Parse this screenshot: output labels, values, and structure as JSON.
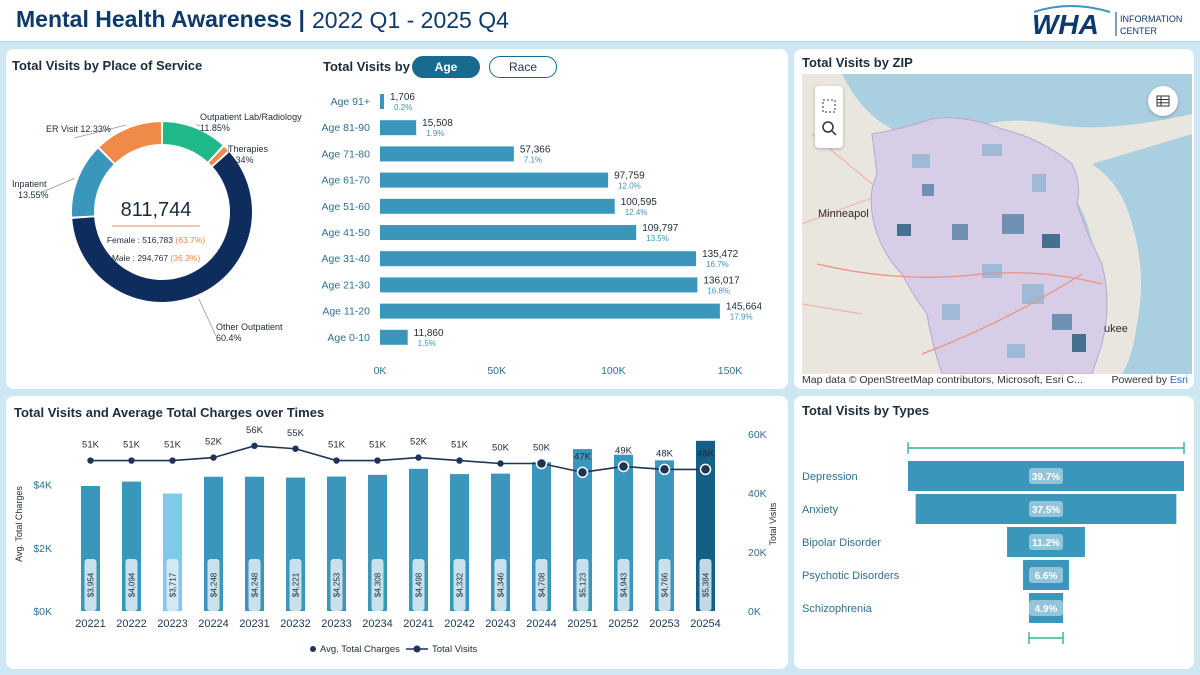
{
  "header": {
    "title": "Mental Health Awareness |",
    "range": "2022 Q1 - 2025 Q4",
    "logo_text": "WHA",
    "logo_sub1": "INFORMATION",
    "logo_sub2": "CENTER"
  },
  "place_panel": {
    "title": "Total Visits by Place of Service",
    "total": "811,744",
    "female_label": "Female : 516,783",
    "female_pct": "(63.7%)",
    "male_label": "Male : 294,767",
    "male_pct": "(36.3%)"
  },
  "place_chart": {
    "type": "pie",
    "slices": [
      {
        "name": "Outpatient Lab/Radiology",
        "pct_label": "11.85%",
        "value": 11.85,
        "color": "#1fb889"
      },
      {
        "name": "Therapies",
        "pct_label": "1.34%",
        "value": 1.34,
        "color": "#f08a48"
      },
      {
        "name": "Other Outpatient",
        "pct_label": "60.4%",
        "value": 60.4,
        "color": "#0e2d5c"
      },
      {
        "name": "Inpatient",
        "pct_label": "13.55%",
        "value": 13.55,
        "color": "#3a96ba"
      },
      {
        "name": "ER Visit",
        "pct_label": "12.33%",
        "value": 12.33,
        "color": "#f08a48"
      }
    ]
  },
  "age_panel": {
    "title": "Total Visits by",
    "tab_age": "Age",
    "tab_race": "Race"
  },
  "age_chart": {
    "type": "bar",
    "categories": [
      "Age 91+",
      "Age 81-90",
      "Age 71-80",
      "Age 61-70",
      "Age 51-60",
      "Age 41-50",
      "Age 31-40",
      "Age 21-30",
      "Age 11-20",
      "Age 0-10"
    ],
    "values": [
      1706,
      15508,
      57366,
      97759,
      100595,
      109797,
      135472,
      136017,
      145664,
      11860
    ],
    "value_labels": [
      "1,706",
      "15,508",
      "57,366",
      "97,759",
      "100,595",
      "109,797",
      "135,472",
      "136,017",
      "145,664",
      "11,860"
    ],
    "pct_labels": [
      "0.2%",
      "1.9%",
      "7.1%",
      "12.0%",
      "12.4%",
      "13.5%",
      "16.7%",
      "16.8%",
      "17.9%",
      "1.5%"
    ],
    "xticks": [
      "0K",
      "50K",
      "100K",
      "150K"
    ],
    "xlim": [
      0,
      150000
    ],
    "color": "#3a96ba"
  },
  "zip_panel": {
    "title": "Total Visits by ZIP",
    "city1": "Minneapol",
    "city2": "ukee",
    "attribution": "Map data © OpenStreetMap contributors, Microsoft, Esri C...",
    "powered": "Powered by",
    "powered_brand": "Esri",
    "icons": [
      "select-rect-icon",
      "search-icon",
      "table-icon"
    ]
  },
  "time_panel": {
    "title": "Total Visits and Average Total Charges over Times"
  },
  "time_chart": {
    "type": "bar",
    "categories": [
      "20221",
      "20222",
      "20223",
      "20224",
      "20231",
      "20232",
      "20233",
      "20234",
      "20241",
      "20242",
      "20243",
      "20244",
      "20251",
      "20252",
      "20253",
      "20254"
    ],
    "charges": [
      3954,
      4094,
      3717,
      4248,
      4248,
      4221,
      4253,
      4308,
      4498,
      4332,
      4346,
      4708,
      5123,
      4943,
      4766,
      5384
    ],
    "charge_labels": [
      "$3,954",
      "$4,094",
      "$3,717",
      "$4,248",
      "$4,248",
      "$4,221",
      "$4,253",
      "$4,308",
      "$4,498",
      "$4,332",
      "$4,346",
      "$4,708",
      "$5,123",
      "$4,943",
      "$4,766",
      "$5,384"
    ],
    "visits": [
      51000,
      51000,
      51000,
      52000,
      56000,
      55000,
      51000,
      51000,
      52000,
      51000,
      50000,
      50000,
      47000,
      49000,
      48000,
      48000
    ],
    "visit_labels": [
      "51K",
      "51K",
      "51K",
      "52K",
      "56K",
      "55K",
      "51K",
      "51K",
      "52K",
      "51K",
      "50K",
      "50K",
      "47K",
      "49K",
      "48K",
      "48K"
    ],
    "ylabel_left": "Avg. Total Charges",
    "ylabel_right": "Total Visits",
    "yticks_left": [
      "$0K",
      "$2K",
      "$4K"
    ],
    "yticks_right": [
      "0K",
      "20K",
      "40K",
      "60K"
    ],
    "ylim_left": [
      0,
      5600
    ],
    "ylim_right": [
      0,
      60000
    ],
    "legend_charges": "Avg. Total Charges",
    "legend_visits": "Total Visits",
    "bar_color": "#3a96ba",
    "highlight_light": "#7ccbe8",
    "highlight_dark": "#135f85",
    "line_color": "#1d3557"
  },
  "types_panel": {
    "title": "Total Visits by Types"
  },
  "types_chart": {
    "type": "bar",
    "categories": [
      "Depression",
      "Anxiety",
      "Bipolar Disorder",
      "Psychotic Disorders",
      "Schizophrenia"
    ],
    "values": [
      39.7,
      37.5,
      11.2,
      6.6,
      4.9
    ],
    "labels": [
      "39.7%",
      "37.5%",
      "11.2%",
      "6.6%",
      "4.9%"
    ],
    "color": "#3a96ba",
    "range_color": "#2bb59a"
  }
}
